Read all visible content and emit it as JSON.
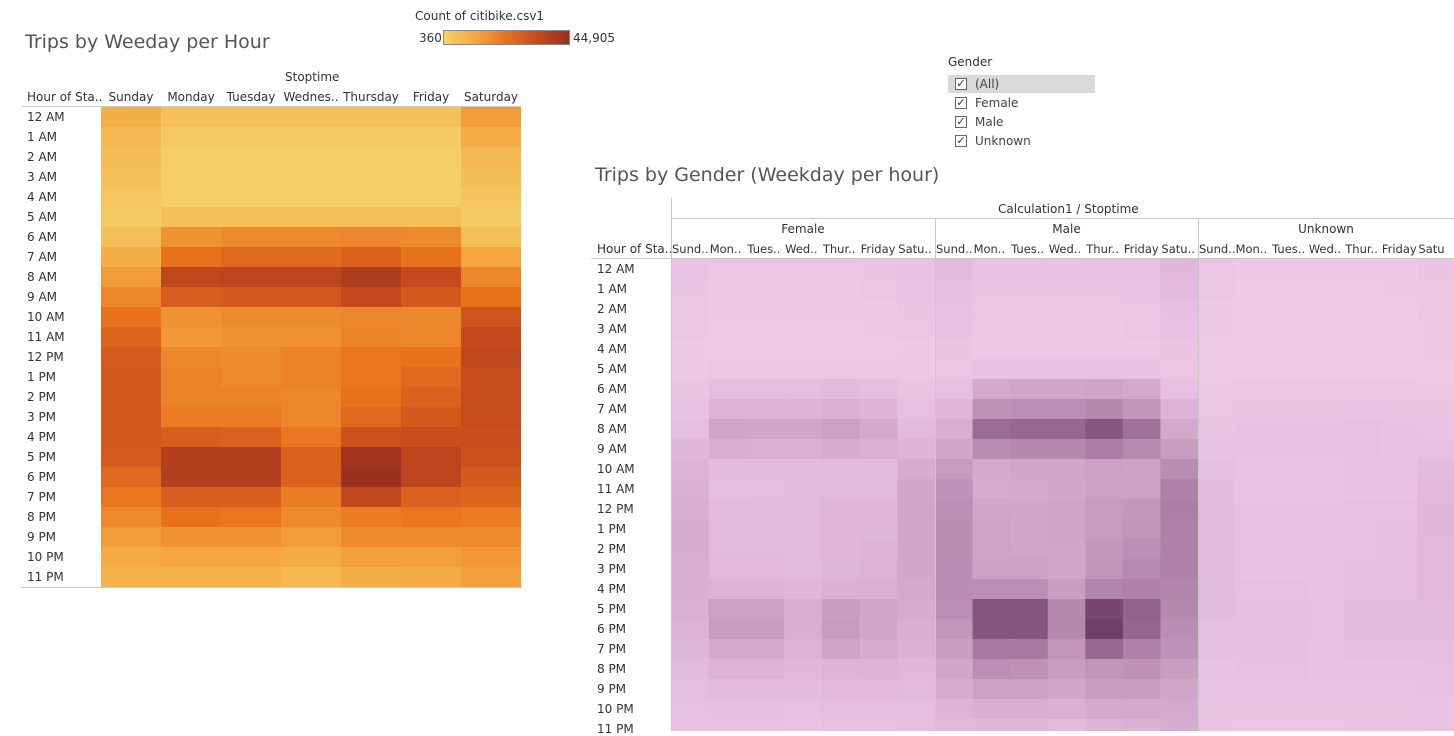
{
  "titles": {
    "heatmap1": "Trips by Weeday per Hour",
    "heatmap2": "Trips by Gender (Weekday per hour)"
  },
  "legend": {
    "title": "Count of citibike.csv1",
    "min_label": "360",
    "max_label": "44,905",
    "min": 360,
    "max": 44905,
    "colors": [
      "#f5d26c",
      "#9a2f20"
    ]
  },
  "filter": {
    "title": "Gender",
    "items": [
      {
        "label": "(All)",
        "checked": true,
        "selected": true
      },
      {
        "label": "Female",
        "checked": true,
        "selected": false
      },
      {
        "label": "Male",
        "checked": true,
        "selected": false
      },
      {
        "label": "Unknown",
        "checked": true,
        "selected": false
      }
    ]
  },
  "chart_data": [
    {
      "type": "heatmap",
      "title": "Trips by Weeday per Hour",
      "column_group_label": "Stoptime",
      "row_header": "Hour of Sta..",
      "columns": [
        "Sunday",
        "Monday",
        "Tuesday",
        "Wednes..",
        "Thursday",
        "Friday",
        "Saturday"
      ],
      "rows": [
        "12 AM",
        "1 AM",
        "2 AM",
        "3 AM",
        "4 AM",
        "5 AM",
        "6 AM",
        "7 AM",
        "8 AM",
        "9 AM",
        "10 AM",
        "11 AM",
        "12 PM",
        "1 PM",
        "2 PM",
        "3 PM",
        "4 PM",
        "5 PM",
        "6 PM",
        "7 PM",
        "8 PM",
        "9 PM",
        "10 PM",
        "11 PM"
      ],
      "colors": [
        "#f5d26c",
        "#9a2f20"
      ],
      "values": [
        [
          0.2,
          0.1,
          0.1,
          0.1,
          0.1,
          0.1,
          0.3
        ],
        [
          0.15,
          0.05,
          0.05,
          0.05,
          0.05,
          0.05,
          0.2
        ],
        [
          0.12,
          0.03,
          0.03,
          0.03,
          0.03,
          0.03,
          0.15
        ],
        [
          0.1,
          0.02,
          0.02,
          0.02,
          0.02,
          0.02,
          0.12
        ],
        [
          0.07,
          0.02,
          0.02,
          0.02,
          0.02,
          0.02,
          0.08
        ],
        [
          0.05,
          0.1,
          0.1,
          0.1,
          0.1,
          0.1,
          0.05
        ],
        [
          0.1,
          0.35,
          0.38,
          0.38,
          0.4,
          0.38,
          0.1
        ],
        [
          0.2,
          0.5,
          0.55,
          0.55,
          0.6,
          0.5,
          0.25
        ],
        [
          0.3,
          0.78,
          0.8,
          0.8,
          0.88,
          0.75,
          0.4
        ],
        [
          0.4,
          0.62,
          0.65,
          0.65,
          0.75,
          0.65,
          0.5
        ],
        [
          0.5,
          0.35,
          0.38,
          0.38,
          0.4,
          0.4,
          0.68
        ],
        [
          0.58,
          0.32,
          0.35,
          0.35,
          0.42,
          0.4,
          0.75
        ],
        [
          0.64,
          0.4,
          0.38,
          0.42,
          0.48,
          0.5,
          0.78
        ],
        [
          0.66,
          0.42,
          0.38,
          0.42,
          0.48,
          0.55,
          0.74
        ],
        [
          0.66,
          0.42,
          0.42,
          0.4,
          0.5,
          0.6,
          0.74
        ],
        [
          0.66,
          0.45,
          0.45,
          0.4,
          0.55,
          0.65,
          0.74
        ],
        [
          0.66,
          0.62,
          0.6,
          0.48,
          0.7,
          0.72,
          0.72
        ],
        [
          0.64,
          0.85,
          0.85,
          0.6,
          0.95,
          0.8,
          0.7
        ],
        [
          0.55,
          0.85,
          0.85,
          0.6,
          0.98,
          0.8,
          0.65
        ],
        [
          0.48,
          0.62,
          0.62,
          0.45,
          0.78,
          0.6,
          0.58
        ],
        [
          0.38,
          0.5,
          0.48,
          0.38,
          0.45,
          0.48,
          0.45
        ],
        [
          0.3,
          0.35,
          0.35,
          0.3,
          0.38,
          0.38,
          0.38
        ],
        [
          0.22,
          0.25,
          0.25,
          0.22,
          0.28,
          0.28,
          0.32
        ],
        [
          0.18,
          0.18,
          0.18,
          0.15,
          0.2,
          0.22,
          0.28
        ]
      ]
    },
    {
      "type": "heatmap",
      "title": "Trips by Gender (Weekday per hour)",
      "column_group_label": "Calculation1 / Stoptime",
      "row_header": "Hour of Sta..",
      "groups": [
        {
          "name": "Female",
          "columns": [
            "Sund..",
            "Mon..",
            "Tues..",
            "Wed..",
            "Thur..",
            "Friday",
            "Satu.."
          ]
        },
        {
          "name": "Male",
          "columns": [
            "Sund..",
            "Mon..",
            "Tues..",
            "Wed..",
            "Thur..",
            "Friday",
            "Satu.."
          ]
        },
        {
          "name": "Unknown",
          "columns": [
            "Sund..",
            "Mon..",
            "Tues..",
            "Wed..",
            "Thur..",
            "Friday",
            "Satu"
          ]
        }
      ],
      "rows": [
        "12 AM",
        "1 AM",
        "2 AM",
        "3 AM",
        "4 AM",
        "5 AM",
        "6 AM",
        "7 AM",
        "8 AM",
        "9 AM",
        "10 AM",
        "11 AM",
        "12 PM",
        "1 PM",
        "2 PM",
        "3 PM",
        "4 PM",
        "5 PM",
        "6 PM",
        "7 PM",
        "8 PM",
        "9 PM",
        "10 PM",
        "11 PM"
      ],
      "colors": [
        "#efc8e8",
        "#6e3a68"
      ],
      "values": {
        "Female": [
          [
            0.04,
            0.02,
            0.02,
            0.02,
            0.02,
            0.03,
            0.05
          ],
          [
            0.03,
            0.01,
            0.01,
            0.01,
            0.01,
            0.02,
            0.04
          ],
          [
            0.02,
            0.01,
            0.01,
            0.01,
            0.01,
            0.01,
            0.03
          ],
          [
            0.02,
            0.0,
            0.0,
            0.0,
            0.0,
            0.01,
            0.02
          ],
          [
            0.01,
            0.0,
            0.0,
            0.0,
            0.0,
            0.0,
            0.01
          ],
          [
            0.01,
            0.02,
            0.02,
            0.02,
            0.02,
            0.02,
            0.01
          ],
          [
            0.03,
            0.08,
            0.08,
            0.08,
            0.09,
            0.08,
            0.03
          ],
          [
            0.05,
            0.15,
            0.14,
            0.14,
            0.16,
            0.14,
            0.06
          ],
          [
            0.08,
            0.25,
            0.24,
            0.24,
            0.28,
            0.22,
            0.1
          ],
          [
            0.12,
            0.18,
            0.17,
            0.17,
            0.2,
            0.17,
            0.14
          ],
          [
            0.15,
            0.09,
            0.09,
            0.09,
            0.1,
            0.1,
            0.2
          ],
          [
            0.17,
            0.08,
            0.08,
            0.09,
            0.1,
            0.1,
            0.24
          ],
          [
            0.18,
            0.1,
            0.09,
            0.1,
            0.12,
            0.12,
            0.25
          ],
          [
            0.19,
            0.1,
            0.09,
            0.1,
            0.12,
            0.13,
            0.24
          ],
          [
            0.19,
            0.1,
            0.1,
            0.1,
            0.12,
            0.14,
            0.24
          ],
          [
            0.18,
            0.11,
            0.11,
            0.1,
            0.13,
            0.15,
            0.23
          ],
          [
            0.18,
            0.15,
            0.15,
            0.12,
            0.17,
            0.17,
            0.22
          ],
          [
            0.17,
            0.28,
            0.28,
            0.18,
            0.3,
            0.25,
            0.2
          ],
          [
            0.15,
            0.3,
            0.3,
            0.18,
            0.32,
            0.24,
            0.18
          ],
          [
            0.13,
            0.22,
            0.22,
            0.15,
            0.26,
            0.2,
            0.16
          ],
          [
            0.1,
            0.15,
            0.15,
            0.12,
            0.14,
            0.15,
            0.12
          ],
          [
            0.08,
            0.1,
            0.1,
            0.09,
            0.11,
            0.11,
            0.1
          ],
          [
            0.06,
            0.07,
            0.07,
            0.06,
            0.08,
            0.08,
            0.08
          ],
          [
            0.05,
            0.05,
            0.05,
            0.04,
            0.06,
            0.06,
            0.07
          ]
        ],
        "Male": [
          [
            0.1,
            0.05,
            0.05,
            0.05,
            0.06,
            0.06,
            0.12
          ],
          [
            0.08,
            0.03,
            0.03,
            0.03,
            0.03,
            0.04,
            0.1
          ],
          [
            0.06,
            0.02,
            0.02,
            0.02,
            0.02,
            0.02,
            0.07
          ],
          [
            0.05,
            0.01,
            0.01,
            0.01,
            0.01,
            0.02,
            0.05
          ],
          [
            0.03,
            0.01,
            0.01,
            0.01,
            0.01,
            0.01,
            0.03
          ],
          [
            0.02,
            0.05,
            0.05,
            0.05,
            0.05,
            0.05,
            0.02
          ],
          [
            0.06,
            0.22,
            0.24,
            0.24,
            0.26,
            0.22,
            0.06
          ],
          [
            0.12,
            0.38,
            0.4,
            0.4,
            0.45,
            0.36,
            0.14
          ],
          [
            0.18,
            0.65,
            0.68,
            0.68,
            0.8,
            0.62,
            0.22
          ],
          [
            0.25,
            0.42,
            0.45,
            0.45,
            0.52,
            0.44,
            0.3
          ],
          [
            0.32,
            0.22,
            0.24,
            0.24,
            0.28,
            0.27,
            0.42
          ],
          [
            0.37,
            0.2,
            0.22,
            0.23,
            0.28,
            0.28,
            0.5
          ],
          [
            0.4,
            0.25,
            0.23,
            0.26,
            0.32,
            0.34,
            0.52
          ],
          [
            0.42,
            0.26,
            0.23,
            0.26,
            0.32,
            0.36,
            0.5
          ],
          [
            0.42,
            0.26,
            0.25,
            0.25,
            0.34,
            0.4,
            0.5
          ],
          [
            0.41,
            0.28,
            0.28,
            0.25,
            0.36,
            0.44,
            0.49
          ],
          [
            0.41,
            0.4,
            0.4,
            0.3,
            0.48,
            0.5,
            0.47
          ],
          [
            0.4,
            0.82,
            0.82,
            0.45,
            0.92,
            0.72,
            0.45
          ],
          [
            0.35,
            0.82,
            0.82,
            0.45,
            0.98,
            0.7,
            0.41
          ],
          [
            0.3,
            0.55,
            0.55,
            0.35,
            0.68,
            0.5,
            0.37
          ],
          [
            0.24,
            0.4,
            0.38,
            0.3,
            0.36,
            0.38,
            0.3
          ],
          [
            0.19,
            0.28,
            0.28,
            0.24,
            0.3,
            0.3,
            0.25
          ],
          [
            0.14,
            0.18,
            0.18,
            0.16,
            0.22,
            0.22,
            0.22
          ],
          [
            0.11,
            0.12,
            0.12,
            0.1,
            0.15,
            0.16,
            0.19
          ]
        ],
        "Unknown": [
          [
            0.02,
            0.01,
            0.01,
            0.01,
            0.01,
            0.01,
            0.03
          ],
          [
            0.02,
            0.0,
            0.0,
            0.0,
            0.0,
            0.01,
            0.02
          ],
          [
            0.01,
            0.0,
            0.0,
            0.0,
            0.0,
            0.0,
            0.02
          ],
          [
            0.01,
            0.0,
            0.0,
            0.0,
            0.0,
            0.0,
            0.01
          ],
          [
            0.0,
            0.0,
            0.0,
            0.0,
            0.0,
            0.0,
            0.01
          ],
          [
            0.0,
            0.0,
            0.0,
            0.0,
            0.0,
            0.0,
            0.0
          ],
          [
            0.01,
            0.02,
            0.02,
            0.02,
            0.02,
            0.02,
            0.01
          ],
          [
            0.02,
            0.03,
            0.03,
            0.03,
            0.04,
            0.03,
            0.03
          ],
          [
            0.03,
            0.05,
            0.05,
            0.05,
            0.06,
            0.05,
            0.04
          ],
          [
            0.05,
            0.05,
            0.05,
            0.05,
            0.06,
            0.05,
            0.06
          ],
          [
            0.07,
            0.04,
            0.04,
            0.04,
            0.05,
            0.05,
            0.09
          ],
          [
            0.09,
            0.04,
            0.04,
            0.04,
            0.05,
            0.05,
            0.11
          ],
          [
            0.1,
            0.05,
            0.05,
            0.05,
            0.06,
            0.06,
            0.12
          ],
          [
            0.1,
            0.05,
            0.05,
            0.05,
            0.06,
            0.07,
            0.12
          ],
          [
            0.1,
            0.05,
            0.05,
            0.05,
            0.06,
            0.07,
            0.11
          ],
          [
            0.1,
            0.05,
            0.05,
            0.05,
            0.07,
            0.08,
            0.11
          ],
          [
            0.1,
            0.06,
            0.06,
            0.05,
            0.08,
            0.08,
            0.11
          ],
          [
            0.09,
            0.08,
            0.08,
            0.06,
            0.09,
            0.09,
            0.1
          ],
          [
            0.08,
            0.08,
            0.08,
            0.06,
            0.1,
            0.09,
            0.09
          ],
          [
            0.07,
            0.07,
            0.07,
            0.05,
            0.08,
            0.07,
            0.08
          ],
          [
            0.05,
            0.06,
            0.06,
            0.05,
            0.05,
            0.05,
            0.06
          ],
          [
            0.04,
            0.04,
            0.04,
            0.04,
            0.04,
            0.04,
            0.05
          ],
          [
            0.03,
            0.03,
            0.03,
            0.03,
            0.03,
            0.03,
            0.04
          ],
          [
            0.03,
            0.02,
            0.02,
            0.02,
            0.03,
            0.03,
            0.04
          ]
        ]
      }
    }
  ]
}
